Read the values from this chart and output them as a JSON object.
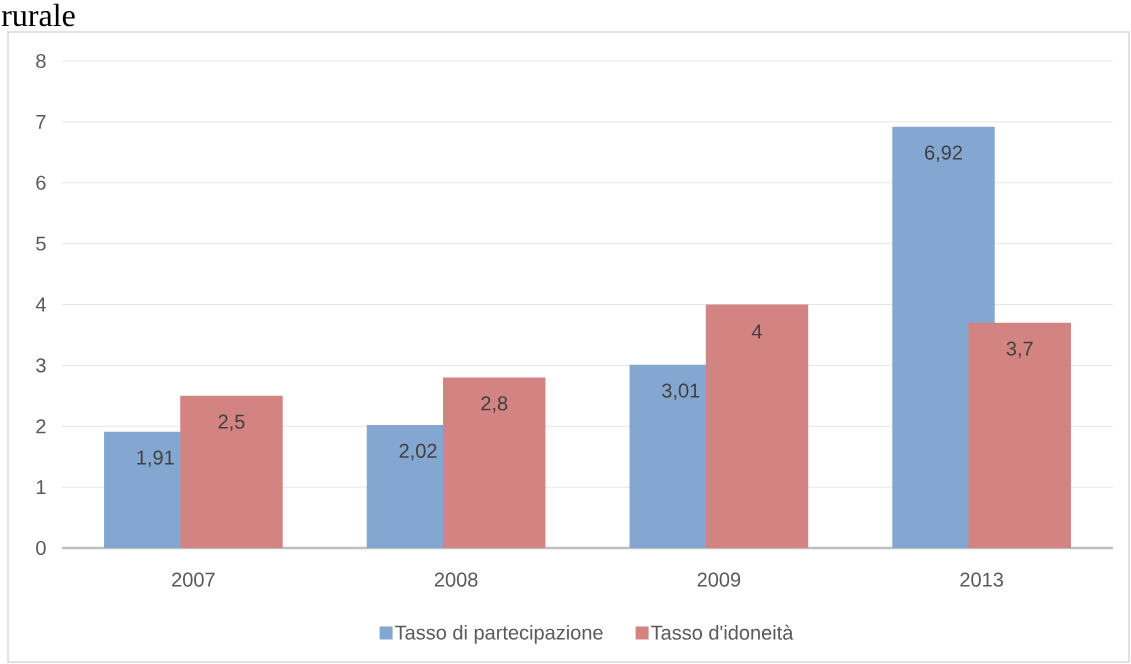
{
  "chart_data": {
    "type": "bar",
    "annotations": [
      "rurale"
    ],
    "categories": [
      "2007",
      "2008",
      "2009",
      "2013"
    ],
    "series": [
      {
        "name": "Tasso di partecipazione",
        "color": "#84a7d1",
        "values": [
          1.91,
          2.02,
          3.01,
          6.92
        ],
        "value_labels": [
          "1,91",
          "2,02",
          "3,01",
          "6,92"
        ]
      },
      {
        "name": "Tasso d'idoneità",
        "color": "#d38482",
        "values": [
          2.5,
          2.8,
          4,
          3.7
        ],
        "value_labels": [
          "2,5",
          "2,8",
          "4",
          "3,7"
        ]
      }
    ],
    "ylim": [
      0,
      8
    ],
    "yticks": [
      0,
      1,
      2,
      3,
      4,
      5,
      6,
      7,
      8
    ],
    "grid": "y",
    "legend": "bottom"
  }
}
